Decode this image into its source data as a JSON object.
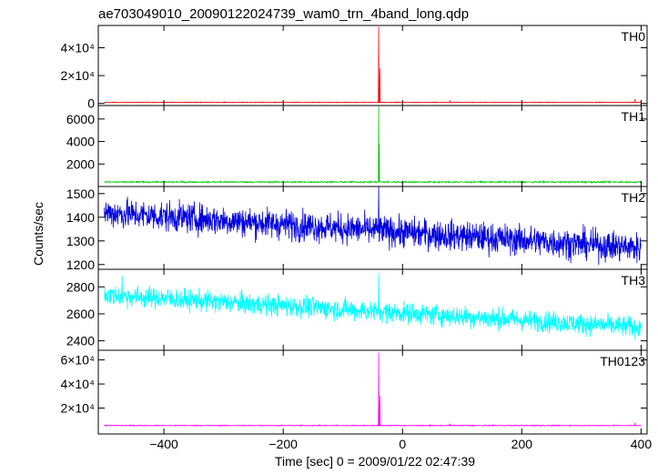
{
  "chart_data": {
    "type": "line",
    "title": "ae703049010_20090122024739_wam0_trn_4band_long.qdp",
    "xlabel": "Time [sec] 0 = 2009/01/22 02:47:39",
    "ylabel": "Counts/sec",
    "xlim": [
      -510,
      410
    ],
    "xticks": [
      -400,
      -200,
      0,
      200,
      400
    ],
    "xtick_labels": [
      "−400",
      "−200",
      "0",
      "200",
      "400"
    ],
    "panels": [
      {
        "name": "TH0",
        "color": "#ff0000",
        "ylim": [
          -1500,
          56000
        ],
        "yticks": [
          0,
          20000,
          40000
        ],
        "ytick_labels": [
          "0",
          "2×10⁴",
          "4×10⁴"
        ],
        "baseline": 800,
        "noise": 150,
        "trend": 0,
        "spikes": [
          [
            -40,
            55000
          ],
          [
            -38,
            25000
          ],
          [
            80,
            2200
          ],
          [
            390,
            3200
          ]
        ]
      },
      {
        "name": "TH1",
        "color": "#00cc00",
        "ylim": [
          0,
          7200
        ],
        "yticks": [
          2000,
          4000,
          6000
        ],
        "ytick_labels": [
          "2000",
          "4000",
          "6000"
        ],
        "baseline": 400,
        "noise": 40,
        "trend": 0,
        "spikes": [
          [
            -40,
            7200
          ],
          [
            -39,
            3800
          ]
        ]
      },
      {
        "name": "TH2",
        "color": "#0000dd",
        "ylim": [
          1180,
          1530
        ],
        "yticks": [
          1200,
          1300,
          1400,
          1500
        ],
        "ytick_labels": [
          "1200",
          "1300",
          "1400",
          "1500"
        ],
        "baseline": 1420,
        "noise": 45,
        "trend": -150,
        "spikes": [
          [
            -40,
            1530
          ]
        ]
      },
      {
        "name": "TH3",
        "color": "#00ffff",
        "ylim": [
          2330,
          2930
        ],
        "yticks": [
          2400,
          2600,
          2800
        ],
        "ytick_labels": [
          "2400",
          "2600",
          "2800"
        ],
        "baseline": 2740,
        "noise": 55,
        "trend": -240,
        "spikes": [
          [
            -40,
            2900
          ],
          [
            -470,
            2880
          ]
        ]
      },
      {
        "name": "TH0123",
        "color": "#ff00ff",
        "ylim": [
          -1500,
          68000
        ],
        "yticks": [
          20000,
          40000,
          60000
        ],
        "ytick_labels": [
          "2×10⁴",
          "4×10⁴",
          "6×10⁴"
        ],
        "baseline": 5500,
        "noise": 250,
        "trend": 0,
        "spikes": [
          [
            -40,
            66000
          ],
          [
            -38,
            30000
          ],
          [
            80,
            7000
          ],
          [
            390,
            8000
          ]
        ]
      }
    ]
  }
}
